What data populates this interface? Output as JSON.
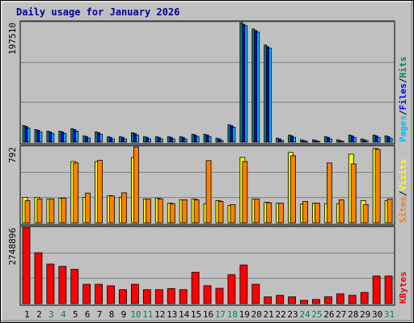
{
  "chart_data": {
    "title": "Daily usage for January 2026",
    "type": "bar",
    "days": [
      "1",
      "2",
      "3",
      "4",
      "5",
      "6",
      "7",
      "8",
      "9",
      "10",
      "11",
      "12",
      "13",
      "14",
      "15",
      "16",
      "17",
      "18",
      "19",
      "20",
      "21",
      "22",
      "23",
      "24",
      "25",
      "26",
      "27",
      "28",
      "29",
      "30",
      "31"
    ],
    "weekend_days": [
      "3",
      "4",
      "10",
      "11",
      "17",
      "18",
      "24",
      "25",
      "31"
    ],
    "colors": {
      "background": "#c0c0c0",
      "title": "#0000a0",
      "hits": "#00805c",
      "files": "#0000ff",
      "pages": "#00c0ff",
      "visits": "#ffff00",
      "sites": "#ff8000",
      "kbytes": "#ff0000",
      "weekend_label": "#00805c",
      "weekday_label": "#000000"
    },
    "panels": [
      {
        "name": "hits-files-pages",
        "ymax_label": "197510",
        "ymax": 197510,
        "legend": [
          {
            "text": "Pages",
            "color": "#00c0ff"
          },
          {
            "text": "/",
            "color": "#000000"
          },
          {
            "text": "Files",
            "color": "#0000ff"
          },
          {
            "text": "/",
            "color": "#000000"
          },
          {
            "text": "Hits",
            "color": "#00805c"
          }
        ],
        "series": [
          {
            "name": "Hits",
            "color": "#00805c",
            "values": [
              27300,
              20800,
              18200,
              18200,
              22100,
              10400,
              16900,
              9100,
              9100,
              15600,
              9100,
              9100,
              9100,
              9100,
              13000,
              13000,
              6500,
              28600,
              197510,
              187100,
              160400,
              6500,
              11700,
              3900,
              3900,
              9100,
              3900,
              11700,
              5200,
              11700,
              10400
            ]
          },
          {
            "name": "Files",
            "color": "#0000ff",
            "values": [
              26000,
              19500,
              16900,
              16900,
              20800,
              9100,
              15600,
              7800,
              7800,
              14300,
              7800,
              7800,
              7800,
              7800,
              11700,
              11700,
              5200,
              27300,
              195000,
              184500,
              157800,
              5200,
              10400,
              2600,
              2600,
              7800,
              2600,
              10400,
              3900,
              10400,
              9100
            ]
          },
          {
            "name": "Pages",
            "color": "#00c0ff",
            "values": [
              23400,
              16900,
              14300,
              14300,
              18200,
              6500,
              13000,
              5200,
              5200,
              11700,
              5200,
              5200,
              5200,
              5200,
              9100,
              9100,
              2600,
              24700,
              192400,
              181900,
              155200,
              2600,
              7800,
              1300,
              1300,
              5200,
              1300,
              7800,
              2600,
              7800,
              6500
            ]
          }
        ]
      },
      {
        "name": "visits-sites",
        "ymax_label": "792",
        "ymax": 792,
        "legend": [
          {
            "text": "Sites",
            "color": "#ff8000"
          },
          {
            "text": "/",
            "color": "#000000"
          },
          {
            "text": "Visits",
            "color": "#ffff00"
          }
        ],
        "series": [
          {
            "name": "Visits",
            "color": "#ffff00",
            "values": [
              267,
              267,
              250,
              258,
              640,
              267,
              640,
              284,
              267,
              683,
              250,
              258,
              207,
              241,
              250,
              200,
              232,
              181,
              683,
              250,
              215,
              207,
              735,
              198,
              207,
              200,
              200,
              717,
              232,
              775,
              232
            ]
          },
          {
            "name": "Sites",
            "color": "#ff8000",
            "values": [
              232,
              250,
              250,
              258,
              625,
              311,
              652,
              281,
              313,
              792,
              250,
              250,
              200,
              241,
              241,
              650,
              224,
              190,
              640,
              250,
              210,
              207,
              700,
              224,
              207,
              625,
              241,
              615,
              190,
              767,
              250
            ]
          }
        ]
      },
      {
        "name": "kbytes",
        "ymax_label": "2748896",
        "ymax": 2748896,
        "legend": [
          {
            "text": "KBytes",
            "color": "#ff0000"
          }
        ],
        "series": [
          {
            "name": "KBytes",
            "color": "#ff0000",
            "values": [
              2748896,
              1845000,
              1433000,
              1350000,
              1240000,
              700000,
              700000,
              645000,
              505000,
              700000,
              505000,
              505000,
              545000,
              505000,
              1135000,
              650000,
              555000,
              1050000,
              1400000,
              700000,
              245000,
              300000,
              245000,
              120000,
              150000,
              245000,
              355000,
              300000,
              405000,
              1000000,
              1000000
            ]
          }
        ]
      }
    ]
  }
}
